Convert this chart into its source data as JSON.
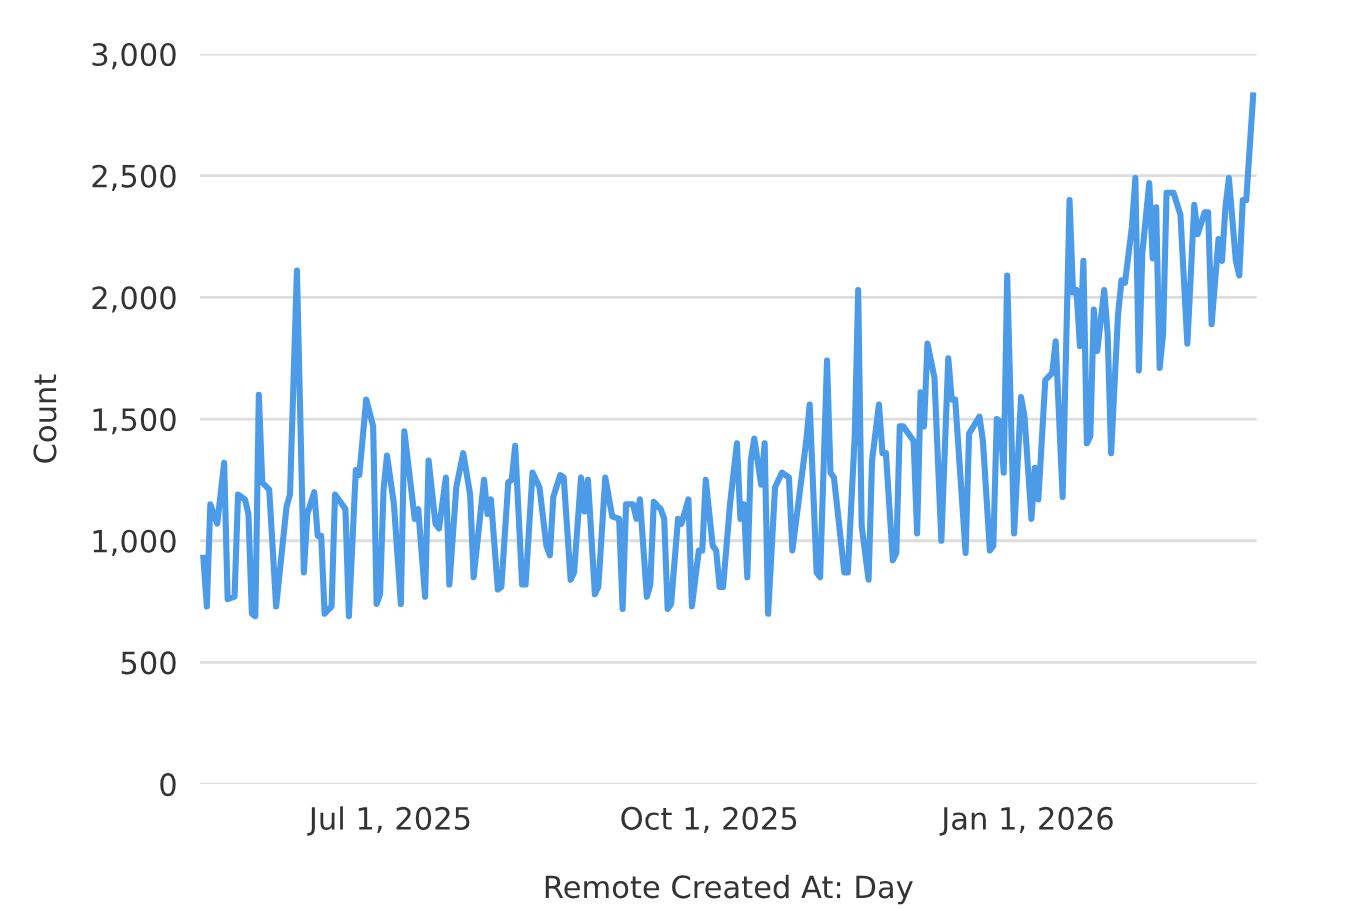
{
  "chart_data": {
    "type": "line",
    "xlabel": "Remote Created At: Day",
    "ylabel": "Count",
    "xlim": [
      "2025-05-07",
      "2026-03-08"
    ],
    "xticks": [
      {
        "value": "2025-07-01",
        "label": "Jul 1, 2025"
      },
      {
        "value": "2025-10-01",
        "label": "Oct 1, 2025"
      },
      {
        "value": "2026-01-01",
        "label": "Jan 1, 2026"
      }
    ],
    "ylim": [
      0,
      3000
    ],
    "yticks": [
      0,
      500,
      {
        "value": 1000,
        "label": "1,000"
      },
      {
        "value": 1500,
        "label": "1,500"
      },
      {
        "value": 2000,
        "label": "2,000"
      },
      {
        "value": 2500,
        "label": "2,500"
      },
      {
        "value": 3000,
        "label": "3,000"
      }
    ],
    "grid": "y",
    "legend": false,
    "marker": "none",
    "line_style": "solid",
    "series": [
      {
        "color": "#4c9be8",
        "x": [
          "2025-05-08",
          "2025-05-09",
          "2025-05-10",
          "2025-05-12",
          "2025-05-14",
          "2025-05-15",
          "2025-05-17",
          "2025-05-18",
          "2025-05-20",
          "2025-05-21",
          "2025-05-22",
          "2025-05-23",
          "2025-05-24",
          "2025-05-25",
          "2025-05-27",
          "2025-05-29",
          "2025-06-01",
          "2025-06-02",
          "2025-06-04",
          "2025-06-06",
          "2025-06-07",
          "2025-06-09",
          "2025-06-10",
          "2025-06-11",
          "2025-06-12",
          "2025-06-14",
          "2025-06-15",
          "2025-06-18",
          "2025-06-19",
          "2025-06-21",
          "2025-06-22",
          "2025-06-24",
          "2025-06-26",
          "2025-06-27",
          "2025-06-28",
          "2025-06-29",
          "2025-06-30",
          "2025-07-02",
          "2025-07-04",
          "2025-07-05",
          "2025-07-07",
          "2025-07-08",
          "2025-07-09",
          "2025-07-11",
          "2025-07-12",
          "2025-07-14",
          "2025-07-15",
          "2025-07-17",
          "2025-07-18",
          "2025-07-20",
          "2025-07-22",
          "2025-07-24",
          "2025-07-25",
          "2025-07-28",
          "2025-07-29",
          "2025-07-30",
          "2025-08-01",
          "2025-08-02",
          "2025-08-04",
          "2025-08-05",
          "2025-08-06",
          "2025-08-08",
          "2025-08-09",
          "2025-08-11",
          "2025-08-13",
          "2025-08-15",
          "2025-08-16",
          "2025-08-17",
          "2025-08-19",
          "2025-08-20",
          "2025-08-22",
          "2025-08-23",
          "2025-08-25",
          "2025-08-26",
          "2025-08-27",
          "2025-08-29",
          "2025-08-30",
          "2025-09-01",
          "2025-09-03",
          "2025-09-05",
          "2025-09-06",
          "2025-09-07",
          "2025-09-09",
          "2025-09-10",
          "2025-09-11",
          "2025-09-13",
          "2025-09-14",
          "2025-09-15",
          "2025-09-17",
          "2025-09-18",
          "2025-09-19",
          "2025-09-20",
          "2025-09-22",
          "2025-09-23",
          "2025-09-25",
          "2025-09-26",
          "2025-09-28",
          "2025-09-29",
          "2025-09-30",
          "2025-10-02",
          "2025-10-03",
          "2025-10-04",
          "2025-10-05",
          "2025-10-07",
          "2025-10-09",
          "2025-10-10",
          "2025-10-11",
          "2025-10-12",
          "2025-10-13",
          "2025-10-14",
          "2025-10-16",
          "2025-10-17",
          "2025-10-18",
          "2025-10-20",
          "2025-10-22",
          "2025-10-24",
          "2025-10-25",
          "2025-10-29",
          "2025-10-30",
          "2025-11-01",
          "2025-11-02",
          "2025-11-04",
          "2025-11-05",
          "2025-11-06",
          "2025-11-09",
          "2025-11-10",
          "2025-11-12",
          "2025-11-13",
          "2025-11-14",
          "2025-11-16",
          "2025-11-17",
          "2025-11-19",
          "2025-11-20",
          "2025-11-21",
          "2025-11-23",
          "2025-11-24",
          "2025-11-25",
          "2025-11-26",
          "2025-11-29",
          "2025-11-30",
          "2025-12-01",
          "2025-12-02",
          "2025-12-03",
          "2025-12-05",
          "2025-12-07",
          "2025-12-09",
          "2025-12-10",
          "2025-12-11",
          "2025-12-14",
          "2025-12-15",
          "2025-12-18",
          "2025-12-19",
          "2025-12-21",
          "2025-12-22",
          "2025-12-23",
          "2025-12-24",
          "2025-12-25",
          "2025-12-26",
          "2025-12-28",
          "2025-12-30",
          "2025-12-31",
          "2026-01-02",
          "2026-01-03",
          "2026-01-04",
          "2026-01-06",
          "2026-01-08",
          "2026-01-09",
          "2026-01-11",
          "2026-01-13",
          "2026-01-14",
          "2026-01-15",
          "2026-01-16",
          "2026-01-17",
          "2026-01-18",
          "2026-01-19",
          "2026-01-20",
          "2026-01-21",
          "2026-01-23",
          "2026-01-24",
          "2026-01-25",
          "2026-01-27",
          "2026-01-28",
          "2026-01-29",
          "2026-01-31",
          "2026-02-01",
          "2026-02-02",
          "2026-02-03",
          "2026-02-05",
          "2026-02-06",
          "2026-02-07",
          "2026-02-08",
          "2026-02-09",
          "2026-02-10",
          "2026-02-12",
          "2026-02-14",
          "2026-02-16",
          "2026-02-18",
          "2026-02-19",
          "2026-02-21",
          "2026-02-22",
          "2026-02-23",
          "2026-02-25",
          "2026-02-26",
          "2026-02-27",
          "2026-02-28",
          "2026-03-02",
          "2026-03-03",
          "2026-03-04",
          "2026-03-05",
          "2026-03-07"
        ],
        "values": [
          930,
          730,
          1150,
          1070,
          1320,
          760,
          770,
          1190,
          1170,
          1110,
          700,
          690,
          1600,
          1240,
          1210,
          730,
          1140,
          1190,
          2110,
          870,
          1110,
          1200,
          1020,
          1020,
          700,
          730,
          1190,
          1130,
          690,
          1290,
          1270,
          1580,
          1470,
          740,
          780,
          1210,
          1350,
          1150,
          740,
          1450,
          1210,
          1090,
          1130,
          770,
          1330,
          1070,
          1050,
          1260,
          820,
          1220,
          1360,
          1190,
          850,
          1250,
          1110,
          1170,
          800,
          810,
          1240,
          1250,
          1390,
          820,
          820,
          1280,
          1220,
          980,
          940,
          1180,
          1270,
          1260,
          840,
          870,
          1260,
          1120,
          1250,
          780,
          810,
          1260,
          1100,
          1090,
          720,
          1150,
          1150,
          1090,
          1170,
          770,
          820,
          1160,
          1130,
          1090,
          720,
          740,
          1090,
          1070,
          1170,
          730,
          960,
          960,
          1250,
          980,
          960,
          810,
          810,
          1150,
          1400,
          1090,
          1150,
          850,
          1330,
          1420,
          1230,
          1400,
          700,
          1220,
          1280,
          1260,
          960,
          1410,
          1560,
          870,
          850,
          1740,
          1280,
          1260,
          870,
          870,
          1430,
          2030,
          1060,
          840,
          1330,
          1560,
          1360,
          1360,
          920,
          950,
          1470,
          1470,
          1410,
          1030,
          1610,
          1470,
          1810,
          1670,
          1000,
          1750,
          1580,
          1580,
          950,
          1440,
          1510,
          1410,
          960,
          980,
          1500,
          1490,
          1280,
          2090,
          1030,
          1590,
          1510,
          1090,
          1300,
          1170,
          1660,
          1690,
          1820,
          1180,
          2400,
          2020,
          2030,
          1800,
          2150,
          1400,
          1430,
          1950,
          1780,
          2030,
          1850,
          1360,
          1930,
          2070,
          2060,
          2290,
          2490,
          1700,
          2180,
          2470,
          2160,
          2370,
          1710,
          1850,
          2430,
          2430,
          2340,
          1810,
          2380,
          2260,
          2350,
          2350,
          1890,
          2240,
          2150,
          2370,
          2490,
          2150,
          2090,
          2400,
          2400,
          2830
        ]
      }
    ]
  }
}
